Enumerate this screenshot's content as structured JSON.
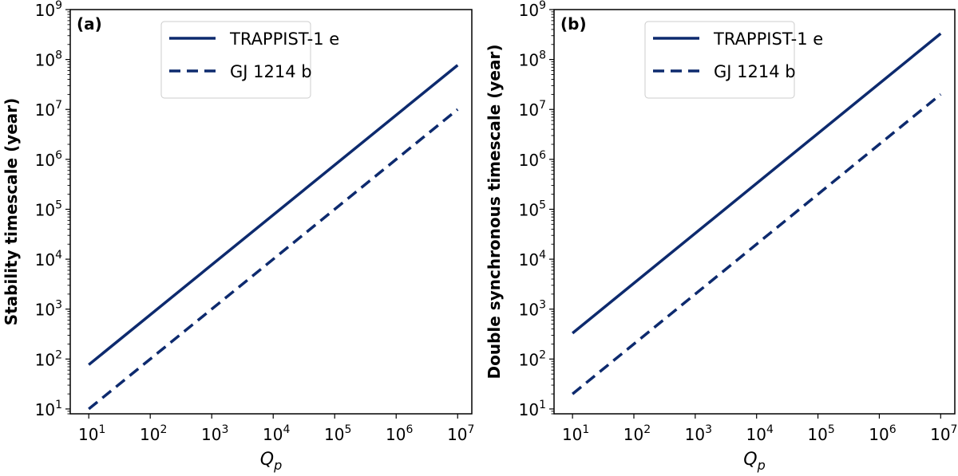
{
  "chart_data": [
    {
      "type": "line",
      "panel_label": "(a)",
      "xlabel": "Q",
      "xlabel_sub": "p",
      "ylabel": "Stability timescale (year)",
      "x_scale": "log",
      "y_scale": "log",
      "xlim": [
        5,
        17000000
      ],
      "ylim": [
        8,
        1000000000
      ],
      "x_ticks": [
        10,
        100,
        1000,
        10000,
        100000,
        1000000,
        10000000
      ],
      "y_ticks": [
        10,
        100,
        1000,
        10000,
        100000,
        1000000,
        10000000,
        100000000,
        1000000000
      ],
      "legend_position": "top-center",
      "series": [
        {
          "name": "TRAPPIST-1 e",
          "style": "solid",
          "x": [
            10,
            10000000
          ],
          "y": [
            77,
            77000000
          ]
        },
        {
          "name": "GJ 1214 b",
          "style": "dashed",
          "x": [
            10,
            10000000
          ],
          "y": [
            10,
            10000000
          ]
        }
      ]
    },
    {
      "type": "line",
      "panel_label": "(b)",
      "xlabel": "Q",
      "xlabel_sub": "p",
      "ylabel": "Double synchronous timescale (year)",
      "x_scale": "log",
      "y_scale": "log",
      "xlim": [
        5,
        17000000
      ],
      "ylim": [
        8,
        1000000000
      ],
      "x_ticks": [
        10,
        100,
        1000,
        10000,
        100000,
        1000000,
        10000000
      ],
      "y_ticks": [
        10,
        100,
        1000,
        10000,
        100000,
        1000000,
        10000000,
        100000000,
        1000000000
      ],
      "legend_position": "top-center",
      "series": [
        {
          "name": "TRAPPIST-1 e",
          "style": "solid",
          "x": [
            10,
            10000000
          ],
          "y": [
            330,
            330000000
          ]
        },
        {
          "name": "GJ 1214 b",
          "style": "dashed",
          "x": [
            10,
            10000000
          ],
          "y": [
            20,
            20000000
          ]
        }
      ]
    }
  ],
  "colors": {
    "line": "#0d2a6e",
    "axis": "#000000"
  }
}
